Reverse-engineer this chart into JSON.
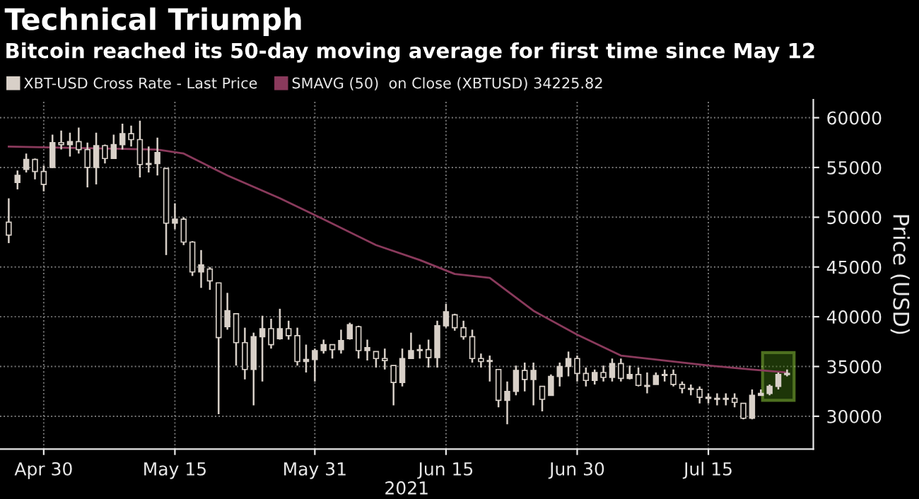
{
  "chart_data": {
    "type": "candlestick",
    "title": "Technical Triumph",
    "subtitle": "Bitcoin reached its 50-day moving average for first time since May 12",
    "xlabel": "2021",
    "ylabel": "Price (USD)",
    "xlim": [
      "2021-04-25",
      "2021-07-27"
    ],
    "xticks": [
      {
        "value": "2021-04-30",
        "label": "Apr 30"
      },
      {
        "value": "2021-05-15",
        "label": "May 15"
      },
      {
        "value": "2021-05-31",
        "label": "May 31"
      },
      {
        "value": "2021-06-15",
        "label": "Jun 15"
      },
      {
        "value": "2021-06-30",
        "label": "Jun 30"
      },
      {
        "value": "2021-07-15",
        "label": "Jul 15"
      }
    ],
    "ylim": [
      26700,
      61800
    ],
    "yticks": [
      30000,
      35000,
      40000,
      45000,
      50000,
      55000,
      60000
    ],
    "grid": true,
    "legend": "top left",
    "series": [
      {
        "name": "XBT-USD Cross Rate - Last Price",
        "color": "#d8d0c8",
        "x": [
          "2021-04-26",
          "2021-04-27",
          "2021-04-28",
          "2021-04-29",
          "2021-04-30",
          "2021-05-01",
          "2021-05-02",
          "2021-05-03",
          "2021-05-04",
          "2021-05-05",
          "2021-05-06",
          "2021-05-07",
          "2021-05-08",
          "2021-05-09",
          "2021-05-10",
          "2021-05-11",
          "2021-05-12",
          "2021-05-13",
          "2021-05-14",
          "2021-05-15",
          "2021-05-16",
          "2021-05-17",
          "2021-05-18",
          "2021-05-19",
          "2021-05-20",
          "2021-05-21",
          "2021-05-22",
          "2021-05-23",
          "2021-05-24",
          "2021-05-25",
          "2021-05-26",
          "2021-05-27",
          "2021-05-28",
          "2021-05-29",
          "2021-05-30",
          "2021-05-31",
          "2021-06-01",
          "2021-06-02",
          "2021-06-03",
          "2021-06-04",
          "2021-06-05",
          "2021-06-06",
          "2021-06-07",
          "2021-06-08",
          "2021-06-09",
          "2021-06-10",
          "2021-06-11",
          "2021-06-12",
          "2021-06-13",
          "2021-06-14",
          "2021-06-15",
          "2021-06-16",
          "2021-06-17",
          "2021-06-18",
          "2021-06-19",
          "2021-06-20",
          "2021-06-21",
          "2021-06-22",
          "2021-06-23",
          "2021-06-24",
          "2021-06-25",
          "2021-06-26",
          "2021-06-27",
          "2021-06-28",
          "2021-06-29",
          "2021-06-30",
          "2021-07-01",
          "2021-07-02",
          "2021-07-03",
          "2021-07-04",
          "2021-07-05",
          "2021-07-06",
          "2021-07-07",
          "2021-07-08",
          "2021-07-09",
          "2021-07-10",
          "2021-07-11",
          "2021-07-12",
          "2021-07-13",
          "2021-07-14",
          "2021-07-15",
          "2021-07-16",
          "2021-07-17",
          "2021-07-18",
          "2021-07-19",
          "2021-07-20",
          "2021-07-21",
          "2021-07-22",
          "2021-07-23",
          "2021-07-24"
        ],
        "ohlc": [
          [
            49500,
            51900,
            47400,
            48200
          ],
          [
            53500,
            54700,
            52800,
            54200
          ],
          [
            54800,
            56400,
            54500,
            55800
          ],
          [
            55800,
            55900,
            53800,
            54600
          ],
          [
            54600,
            55200,
            52600,
            53300
          ],
          [
            55000,
            58300,
            54950,
            57500
          ],
          [
            57500,
            58700,
            56800,
            57300
          ],
          [
            57300,
            58500,
            56100,
            57600
          ],
          [
            57600,
            59000,
            56400,
            56800
          ],
          [
            56800,
            57500,
            53000,
            55000
          ],
          [
            55000,
            58500,
            53300,
            57200
          ],
          [
            57200,
            57300,
            55400,
            55900
          ],
          [
            55900,
            58300,
            55900,
            57300
          ],
          [
            57300,
            59400,
            56800,
            58400
          ],
          [
            58400,
            59200,
            57100,
            57800
          ],
          [
            57800,
            59700,
            54000,
            55300
          ],
          [
            55300,
            57100,
            54500,
            55400
          ],
          [
            55400,
            58000,
            54200,
            56500
          ],
          [
            54900,
            54950,
            46200,
            49400
          ],
          [
            49400,
            51400,
            48800,
            49800
          ],
          [
            49800,
            50000,
            47200,
            47500
          ],
          [
            47500,
            47600,
            44100,
            44500
          ],
          [
            44500,
            46700,
            42900,
            45200
          ],
          [
            44800,
            45000,
            42700,
            43600
          ],
          [
            43400,
            43400,
            30200,
            37900
          ],
          [
            39000,
            42400,
            38700,
            40600
          ],
          [
            40300,
            40300,
            35100,
            37400
          ],
          [
            37400,
            38900,
            33700,
            34700
          ],
          [
            34700,
            38400,
            31100,
            38000
          ],
          [
            38000,
            40100,
            33500,
            38800
          ],
          [
            38800,
            39800,
            36800,
            37200
          ],
          [
            37800,
            40800,
            37700,
            38800
          ],
          [
            38800,
            39600,
            37700,
            38100
          ],
          [
            38100,
            38900,
            35100,
            35500
          ],
          [
            35500,
            37200,
            34400,
            35700
          ],
          [
            35700,
            36800,
            33500,
            36600
          ],
          [
            36600,
            37700,
            36300,
            37200
          ],
          [
            37200,
            37200,
            35800,
            36700
          ],
          [
            36700,
            38700,
            36300,
            37600
          ],
          [
            37800,
            39400,
            37700,
            39200
          ],
          [
            39000,
            39100,
            35800,
            36600
          ],
          [
            36600,
            37700,
            35600,
            36900
          ],
          [
            36500,
            36500,
            34900,
            35800
          ],
          [
            35800,
            36800,
            34700,
            35600
          ],
          [
            35100,
            35100,
            31100,
            33400
          ],
          [
            33400,
            36800,
            33000,
            35800
          ],
          [
            35800,
            38400,
            35800,
            36600
          ],
          [
            36600,
            37200,
            35800,
            36700
          ],
          [
            36700,
            37700,
            34900,
            35900
          ],
          [
            35900,
            39600,
            34900,
            39100
          ],
          [
            39100,
            41300,
            38900,
            40500
          ],
          [
            40200,
            40300,
            38600,
            38900
          ],
          [
            38900,
            39600,
            37700,
            38000
          ],
          [
            38000,
            38700,
            35400,
            35800
          ],
          [
            35800,
            36300,
            34900,
            35500
          ],
          [
            35500,
            36100,
            33500,
            35600
          ],
          [
            34700,
            34700,
            30900,
            31600
          ],
          [
            31600,
            33500,
            29200,
            32500
          ],
          [
            32500,
            35100,
            32100,
            34600
          ],
          [
            34600,
            35400,
            32500,
            33700
          ],
          [
            33700,
            35400,
            31100,
            34600
          ],
          [
            33000,
            33000,
            30500,
            31700
          ],
          [
            32100,
            34200,
            32100,
            34000
          ],
          [
            34000,
            35400,
            33000,
            35000
          ],
          [
            35000,
            36500,
            34000,
            35800
          ],
          [
            35800,
            36100,
            33500,
            34300
          ],
          [
            34300,
            34900,
            33000,
            33600
          ],
          [
            33600,
            34700,
            33200,
            34400
          ],
          [
            34400,
            35100,
            33500,
            33900
          ],
          [
            33900,
            35800,
            33500,
            35300
          ],
          [
            35300,
            35800,
            33500,
            33800
          ],
          [
            33800,
            35100,
            33700,
            34200
          ],
          [
            34200,
            34900,
            33000,
            33100
          ],
          [
            33100,
            34400,
            32300,
            33000
          ],
          [
            33200,
            34400,
            33200,
            34100
          ],
          [
            34100,
            34700,
            33500,
            34200
          ],
          [
            34200,
            34700,
            33000,
            33200
          ],
          [
            33200,
            33500,
            32300,
            32800
          ],
          [
            32800,
            33200,
            32100,
            32700
          ],
          [
            32700,
            33000,
            31300,
            31900
          ],
          [
            31900,
            32300,
            31300,
            31800
          ],
          [
            31800,
            32300,
            31100,
            31700
          ],
          [
            31700,
            32300,
            31100,
            31800
          ],
          [
            31800,
            32300,
            30900,
            31400
          ],
          [
            31300,
            31300,
            29700,
            29800
          ],
          [
            29800,
            32700,
            29700,
            32100
          ],
          [
            32100,
            32700,
            32100,
            32300
          ],
          [
            32300,
            33200,
            32100,
            33000
          ],
          [
            33000,
            34400,
            32700,
            34200
          ],
          [
            34200,
            34700,
            34000,
            34300
          ]
        ]
      },
      {
        "name": "SMAVG (50)  on Close (XBTUSD) 34225.82",
        "type": "line",
        "color": "#8a3a5c",
        "x": [
          "2021-04-26",
          "2021-05-13",
          "2021-05-16",
          "2021-05-21",
          "2021-05-27",
          "2021-06-01",
          "2021-06-07",
          "2021-06-12",
          "2021-06-16",
          "2021-06-20",
          "2021-06-25",
          "2021-06-30",
          "2021-07-05",
          "2021-07-10",
          "2021-07-15",
          "2021-07-20",
          "2021-07-24"
        ],
        "values": [
          57100,
          56800,
          56400,
          54200,
          51900,
          49800,
          47200,
          45700,
          44300,
          43900,
          40600,
          38200,
          36100,
          35600,
          35100,
          34700,
          34400
        ]
      }
    ]
  }
}
